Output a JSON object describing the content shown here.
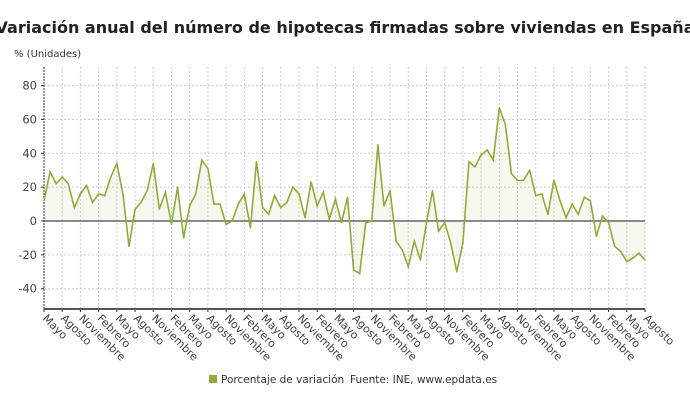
{
  "chart_data": {
    "type": "area",
    "title": "Variación anual del número de hipotecas firmadas sobre viviendas en España",
    "ylabel": "% (Unidades)",
    "xlabel": "",
    "ylim": [
      -52,
      91
    ],
    "yticks": [
      80,
      60,
      40,
      20,
      0,
      -20,
      -40
    ],
    "grid": true,
    "legend_position": "bottom",
    "source": "Fuente: INE, www.epdata.es",
    "x_tick_labels": [
      "Mayo",
      "Agosto",
      "Noviembre",
      "Febrero",
      "Mayo",
      "Agosto",
      "Noviembre",
      "Febrero",
      "Mayo",
      "Agosto",
      "Noviembre",
      "Febrero",
      "Mayo",
      "Agosto",
      "Noviembre",
      "Febrero",
      "Mayo",
      "Agosto",
      "Noviembre",
      "Febrero",
      "Mayo",
      "Agosto",
      "Noviembre",
      "Febrero",
      "Mayo",
      "Agosto",
      "Noviembre",
      "Febrero",
      "Mayo",
      "Agosto",
      "Noviembre",
      "Febrero",
      "Mayo",
      "Agosto"
    ],
    "x_tick_every_months": 3,
    "series": [
      {
        "name": "Porcentaje de variación",
        "color": "#8fab3c",
        "values": [
          12,
          29,
          22,
          26,
          22,
          8,
          16,
          21,
          11,
          16,
          15,
          26,
          34,
          16,
          -15,
          7,
          11,
          18,
          34,
          7,
          17,
          -2,
          20,
          -10,
          9,
          16,
          36,
          31,
          10,
          10,
          -2,
          0,
          10,
          16,
          -4,
          35,
          8,
          4,
          15,
          8,
          11,
          20,
          16,
          2,
          23,
          9,
          17,
          1,
          13,
          -1,
          14,
          -29,
          -31,
          -1,
          0,
          45,
          9,
          18,
          -12,
          -17,
          -27,
          -12,
          -23,
          -1,
          18,
          -6,
          -1,
          -13,
          -30,
          -13,
          35,
          32,
          39,
          42,
          36,
          67,
          57,
          28,
          24,
          24,
          30,
          15,
          16,
          4,
          24,
          12,
          2,
          10,
          4,
          14,
          12,
          -9,
          3,
          -1,
          -15,
          -18,
          -24,
          -22,
          -19,
          -23
        ]
      }
    ]
  }
}
